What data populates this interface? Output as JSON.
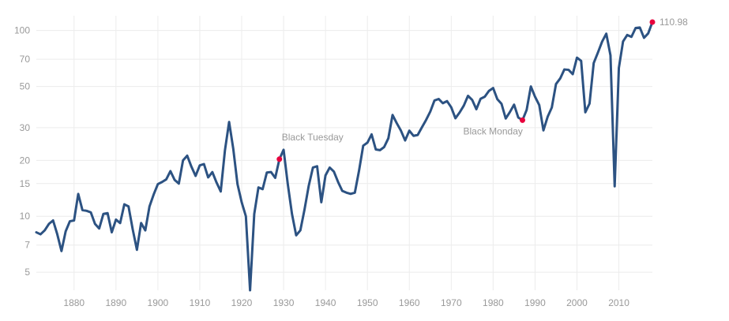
{
  "chart_data": {
    "type": "line",
    "title": "",
    "xlabel": "",
    "ylabel": "",
    "x_scale": "linear",
    "y_scale": "log",
    "xlim": [
      1871,
      2018
    ],
    "ylim": [
      4.0,
      120
    ],
    "grid": true,
    "x_ticks": [
      1880,
      1890,
      1900,
      1910,
      1920,
      1930,
      1940,
      1950,
      1960,
      1970,
      1980,
      1990,
      2000,
      2010
    ],
    "x_tick_labels": [
      "1880",
      "1890",
      "1900",
      "1910",
      "1920",
      "1930",
      "1940",
      "1950",
      "1960",
      "1970",
      "1980",
      "1990",
      "2000",
      "2010"
    ],
    "y_ticks": [
      5,
      7,
      10,
      15,
      20,
      30,
      50,
      70,
      100
    ],
    "y_tick_labels": [
      "5",
      "7",
      "10",
      "15",
      "20",
      "30",
      "50",
      "70",
      "100"
    ],
    "line_color": "#2c5282",
    "marker_color": "#e8003d",
    "series": [
      {
        "x": [
          1871,
          1872,
          1873,
          1874,
          1875,
          1876,
          1877,
          1878,
          1879,
          1880,
          1881,
          1882,
          1883,
          1884,
          1885,
          1886,
          1887,
          1888,
          1889,
          1890,
          1891,
          1892,
          1893,
          1894,
          1895,
          1896,
          1897,
          1898,
          1899,
          1900,
          1901,
          1902,
          1903,
          1904,
          1905,
          1906,
          1907,
          1908,
          1909,
          1910,
          1911,
          1912,
          1913,
          1914,
          1915,
          1916,
          1917,
          1918,
          1919,
          1920,
          1921,
          1922,
          1923,
          1924,
          1925,
          1926,
          1927,
          1928,
          1929,
          1930,
          1931,
          1932,
          1933,
          1934,
          1935,
          1936,
          1937,
          1938,
          1939,
          1940,
          1941,
          1942,
          1943,
          1944,
          1945,
          1946,
          1947,
          1948,
          1949,
          1950,
          1951,
          1952,
          1953,
          1954,
          1955,
          1956,
          1957,
          1958,
          1959,
          1960,
          1961,
          1962,
          1963,
          1964,
          1965,
          1966,
          1967,
          1968,
          1969,
          1970,
          1971,
          1972,
          1973,
          1974,
          1975,
          1976,
          1977,
          1978,
          1979,
          1980,
          1981,
          1982,
          1983,
          1984,
          1985,
          1986,
          1987,
          1988,
          1989,
          1990,
          1991,
          1992,
          1993,
          1994,
          1995,
          1996,
          1997,
          1998,
          1999,
          2000,
          2001,
          2002,
          2003,
          2004,
          2005,
          2006,
          2007,
          2008,
          2009,
          2010,
          2011,
          2012,
          2013,
          2014,
          2015,
          2016,
          2017,
          2018
        ],
        "y": [
          8.2,
          8.0,
          8.4,
          9.1,
          9.5,
          8.0,
          6.5,
          8.3,
          9.4,
          9.5,
          13.2,
          10.8,
          10.7,
          10.5,
          9.1,
          8.6,
          10.3,
          10.4,
          8.2,
          9.6,
          9.2,
          11.6,
          11.3,
          8.5,
          6.6,
          9.2,
          8.4,
          11.3,
          13.1,
          14.9,
          15.3,
          15.8,
          17.5,
          15.7,
          15.0,
          20.0,
          21.2,
          18.5,
          16.5,
          18.8,
          19.1,
          16.2,
          17.3,
          15.2,
          13.6,
          22.6,
          32.2,
          23.0,
          14.9,
          11.9,
          10.0,
          4.0,
          10.3,
          14.3,
          14.0,
          17.2,
          17.3,
          16.1,
          20.3,
          22.8,
          14.9,
          10.3,
          7.9,
          8.4,
          10.9,
          14.6,
          18.3,
          18.6,
          11.9,
          16.6,
          18.3,
          17.4,
          15.3,
          13.7,
          13.4,
          13.2,
          13.4,
          17.6,
          24.0,
          24.9,
          27.6,
          22.9,
          22.7,
          23.6,
          26.3,
          35.1,
          31.7,
          28.9,
          25.6,
          28.9,
          27.1,
          27.4,
          30.1,
          33.0,
          36.6,
          42.0,
          42.8,
          40.6,
          41.7,
          38.6,
          33.7,
          36.2,
          39.4,
          44.5,
          42.3,
          37.7,
          42.9,
          44.0,
          47.3,
          49.0,
          42.7,
          40.3,
          33.6,
          36.4,
          39.9,
          34.0,
          32.9,
          37.4,
          50.0,
          44.0,
          39.7,
          29.0,
          34.3,
          38.5,
          51.5,
          55.2,
          61.7,
          61.4,
          58.2,
          71.4,
          68.6,
          36.3,
          40.4,
          66.8,
          76.0,
          87.1,
          96.1,
          73.5,
          14.5,
          62.9,
          87.3,
          94.6,
          92.4,
          103.1,
          103.8,
          91.3,
          96.5,
          110.98
        ]
      }
    ],
    "annotations": [
      {
        "label": "Black Tuesday",
        "x": 1929,
        "y": 20.3
      },
      {
        "label": "Black Monday",
        "x": 1987,
        "y": 32.9
      }
    ],
    "end_label": {
      "x": 2018,
      "y": 110.98,
      "text": "110.98"
    }
  }
}
